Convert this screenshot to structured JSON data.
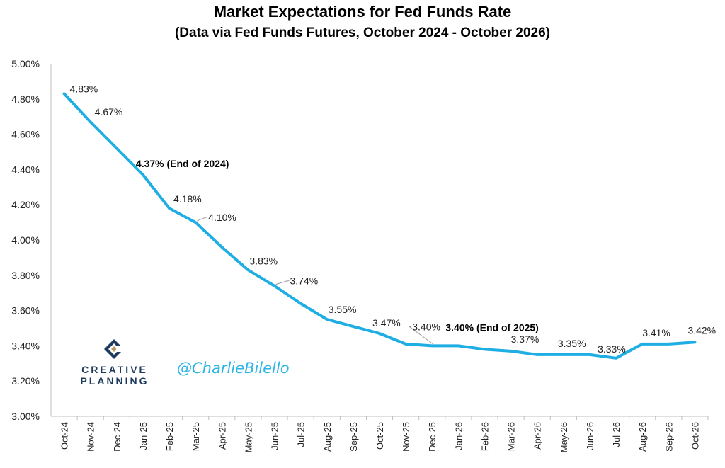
{
  "chart_data": {
    "type": "line",
    "title": "Market Expectations for Fed Funds Rate",
    "subtitle": "(Data via Fed Funds Futures, October 2024 - October 2026)",
    "categories": [
      "Oct-24",
      "Nov-24",
      "Dec-24",
      "Jan-25",
      "Feb-25",
      "Mar-25",
      "Apr-25",
      "May-25",
      "Jun-25",
      "Jul-25",
      "Aug-25",
      "Sep-25",
      "Oct-25",
      "Nov-25",
      "Dec-25",
      "Jan-26",
      "Feb-26",
      "Mar-26",
      "Apr-26",
      "May-26",
      "Jun-26",
      "Jul-26",
      "Aug-26",
      "Sep-26",
      "Oct-26"
    ],
    "series": [
      {
        "values": [
          4.83,
          4.67,
          4.52,
          4.37,
          4.18,
          4.1,
          3.96,
          3.83,
          3.74,
          3.64,
          3.55,
          3.51,
          3.47,
          3.41,
          3.4,
          3.4,
          3.38,
          3.37,
          3.35,
          3.35,
          3.35,
          3.33,
          3.41,
          3.41,
          3.42
        ],
        "color": "#1faee3"
      }
    ],
    "ylim": [
      3.0,
      5.0
    ],
    "y_ticks": [
      "5.00%",
      "4.80%",
      "4.60%",
      "4.40%",
      "4.20%",
      "4.00%",
      "3.80%",
      "3.60%",
      "3.40%",
      "3.20%",
      "3.00%"
    ],
    "grid": false,
    "annotations": [
      {
        "index": 0,
        "text": "4.83%",
        "bold": false
      },
      {
        "index": 1,
        "text": "4.67%",
        "bold": false
      },
      {
        "index": 3,
        "text": "4.37% (End of 2024)",
        "bold": true
      },
      {
        "index": 4,
        "text": "4.18%",
        "bold": false
      },
      {
        "index": 5,
        "text": "4.10%",
        "bold": false
      },
      {
        "index": 7,
        "text": "3.83%",
        "bold": false
      },
      {
        "index": 8,
        "text": "3.74%",
        "bold": false
      },
      {
        "index": 10,
        "text": "3.55%",
        "bold": false
      },
      {
        "index": 12,
        "text": "3.47%",
        "bold": false
      },
      {
        "index": 14,
        "text": "3.40%",
        "bold": false
      },
      {
        "index": 15,
        "text": "3.40% (End of 2025)",
        "bold": true
      },
      {
        "index": 17,
        "text": "3.37%",
        "bold": false
      },
      {
        "index": 19,
        "text": "3.35%",
        "bold": false
      },
      {
        "index": 21,
        "text": "3.33%",
        "bold": false
      },
      {
        "index": 22,
        "text": "3.41%",
        "bold": false
      },
      {
        "index": 24,
        "text": "3.42%",
        "bold": false
      }
    ]
  },
  "branding": {
    "logo_line1": "CREATIVE",
    "logo_line2": "PLANNING",
    "handle": "@CharlieBilello",
    "logo_colors": [
      "#1e3a5c",
      "#b89a63"
    ]
  }
}
